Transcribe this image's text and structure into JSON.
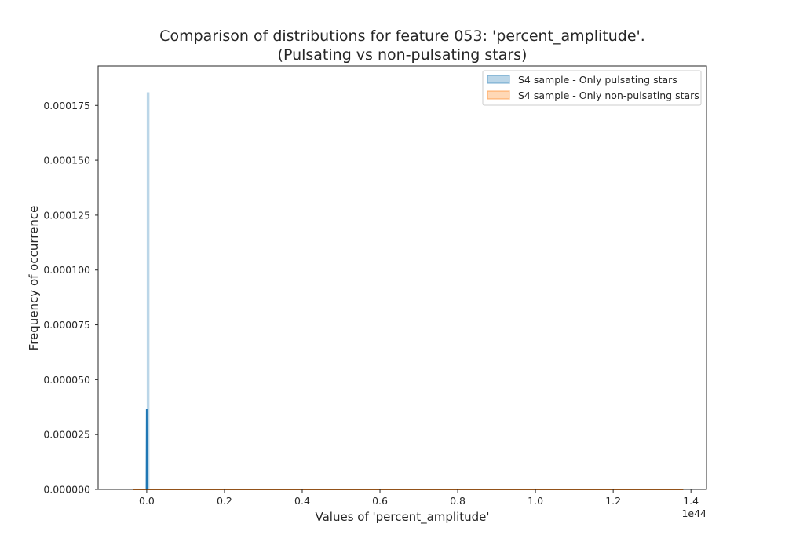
{
  "chart_data": {
    "type": "bar",
    "title": [
      "Comparison of distributions for feature 053: 'percent_amplitude'.",
      "(Pulsating vs non-pulsating stars)"
    ],
    "xlabel": "Values of 'percent_amplitude'",
    "ylabel": "Frequency of occurrence",
    "x_offset_label": "1e44",
    "x_scale": 1e+44,
    "xlim": [
      -0.125,
      1.44
    ],
    "ylim": [
      0,
      0.000193
    ],
    "x_ticks": [
      0.0,
      0.2,
      0.4,
      0.6,
      0.8,
      1.0,
      1.2,
      1.4
    ],
    "x_tick_labels": [
      "0.0",
      "0.2",
      "0.4",
      "0.6",
      "0.8",
      "1.0",
      "1.2",
      "1.4"
    ],
    "y_ticks": [
      0.0,
      2.5e-05,
      5e-05,
      7.5e-05,
      0.0001,
      0.000125,
      0.00015,
      0.000175
    ],
    "y_tick_labels": [
      "0.000000",
      "0.000025",
      "0.000050",
      "0.000075",
      "0.000100",
      "0.000125",
      "0.000150",
      "0.000175"
    ],
    "grid": false,
    "legend_position": "top-right",
    "series": [
      {
        "name": "S4 sample - Only pulsating stars",
        "color": "#1f77b4",
        "bins": [
          {
            "x0": 0.0,
            "x1": 0.007,
            "value": 0.000181
          }
        ],
        "line": {
          "x_start": -0.035,
          "x_end": 1.38,
          "y_at_zero": 3.65e-05,
          "y_elsewhere": 0.0
        }
      },
      {
        "name": "S4 sample - Only non-pulsating stars",
        "color": "#ff7f0e",
        "bins": [
          {
            "x0": 0.0,
            "x1": 0.007,
            "value": 3e-07
          }
        ],
        "line": {
          "x_start": -0.035,
          "x_end": 1.38,
          "y_at_zero": 0.0,
          "y_elsewhere": 0.0
        }
      }
    ]
  }
}
